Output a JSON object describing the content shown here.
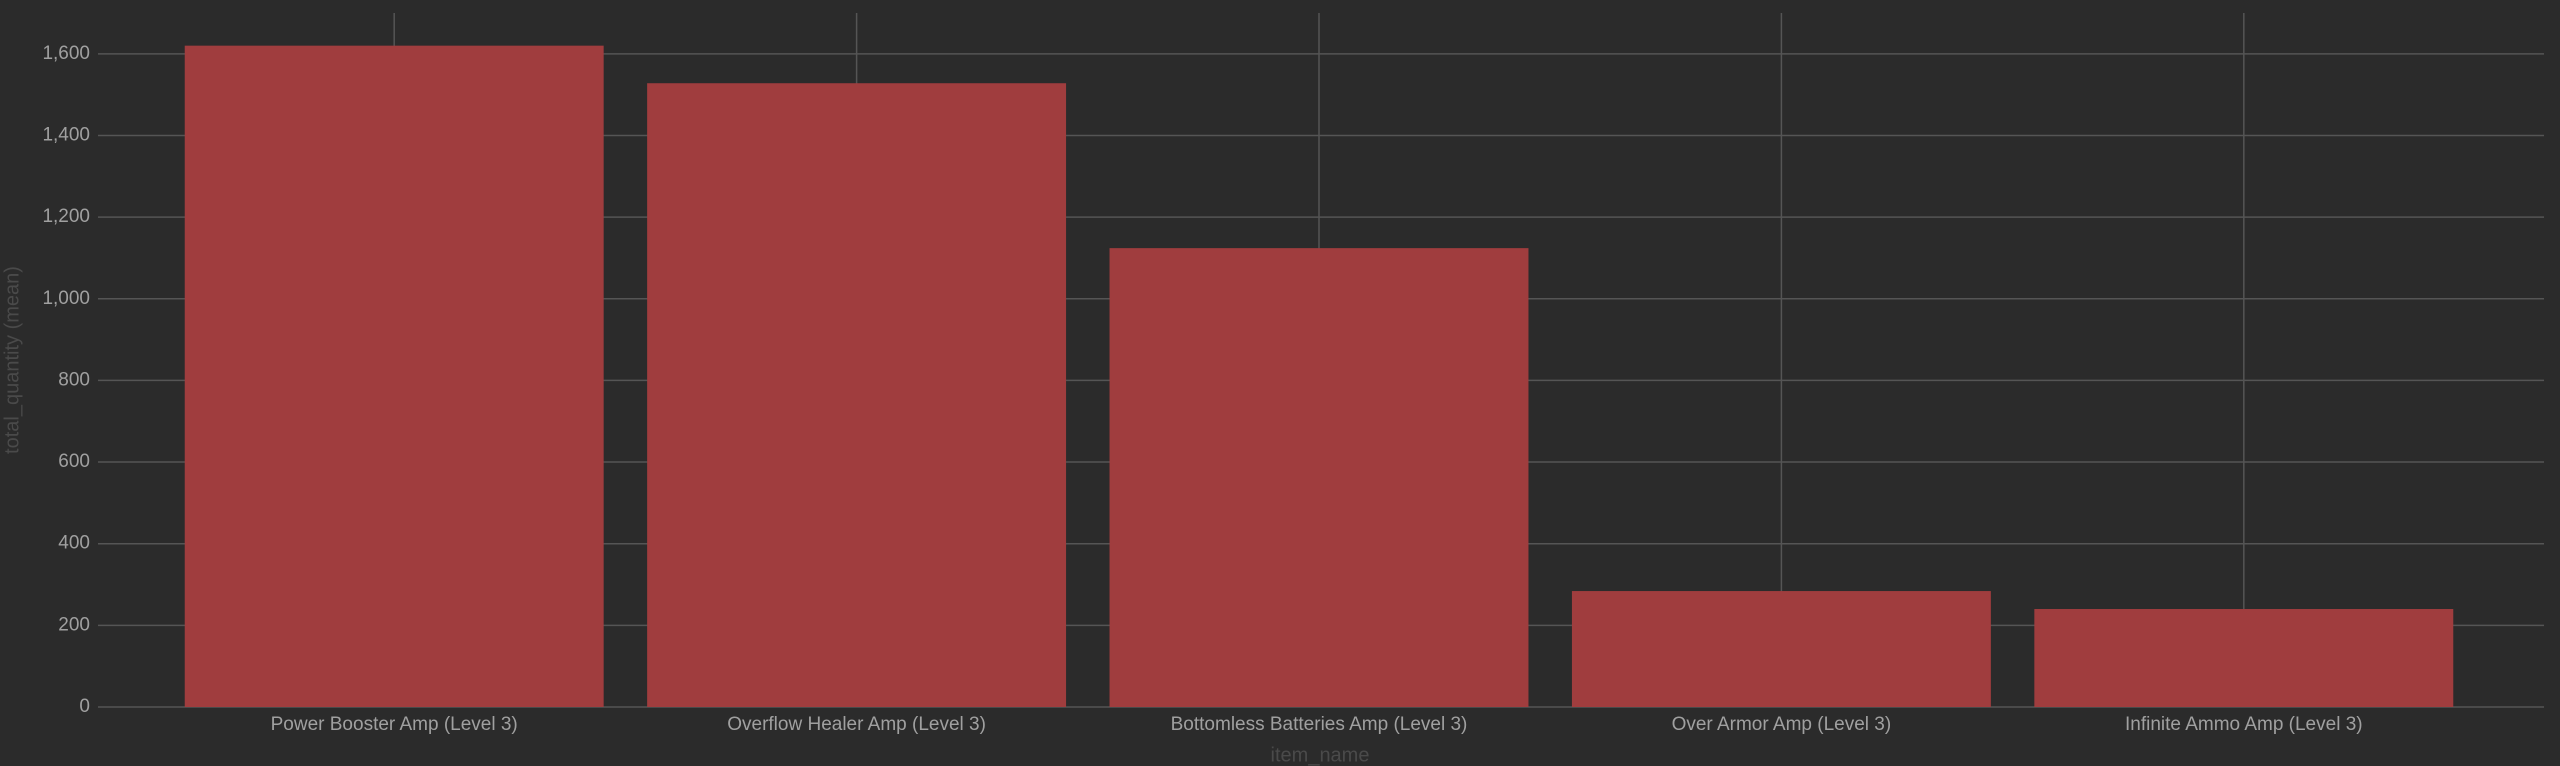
{
  "chart_data": {
    "type": "bar",
    "x_label": "item_name",
    "y_label": "total_quantity (mean)",
    "categories": [
      "Power Booster Amp (Level 3)",
      "Overflow Healer Amp (Level 3)",
      "Bottomless Batteries Amp (Level 3)",
      "Over Armor Amp (Level 3)",
      "Infinite Ammo Amp (Level 3)"
    ],
    "values": [
      1620,
      1528,
      1124,
      284,
      240
    ],
    "color": "#a03d3e",
    "ylim": [
      0,
      1700
    ],
    "yticks": [
      0,
      200,
      400,
      600,
      800,
      {
        "value": 1000,
        "label": "1,000"
      },
      {
        "value": 1200,
        "label": "1,200"
      },
      {
        "value": 1400,
        "label": "1,400"
      },
      {
        "value": 1600,
        "label": "1,600"
      }
    ],
    "grid": true
  }
}
